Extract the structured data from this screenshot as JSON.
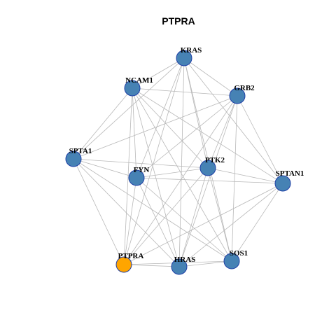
{
  "title": "PTPRA",
  "colors": {
    "node_fill": "#4682b4",
    "node_border": "#1f3fa6",
    "highlight_fill": "#ffa500",
    "edge": "#b8b8b8"
  },
  "nodes": [
    {
      "id": "KRAS",
      "label": "KRAS",
      "highlight": false
    },
    {
      "id": "NCAM1",
      "label": "NCAM1",
      "highlight": false
    },
    {
      "id": "GRB2",
      "label": "GRB2",
      "highlight": false
    },
    {
      "id": "SPTA1",
      "label": "SPTA1",
      "highlight": false
    },
    {
      "id": "PTK2",
      "label": "PTK2",
      "highlight": false
    },
    {
      "id": "FYN",
      "label": "FYN",
      "highlight": false
    },
    {
      "id": "SPTAN1",
      "label": "SPTAN1",
      "highlight": false
    },
    {
      "id": "SOS1",
      "label": "SOS1",
      "highlight": false
    },
    {
      "id": "PTPRA",
      "label": "PTPRA",
      "highlight": true
    },
    {
      "id": "HRAS",
      "label": "HRAS",
      "highlight": false
    }
  ],
  "edges": [
    [
      "KRAS",
      "NCAM1"
    ],
    [
      "KRAS",
      "GRB2"
    ],
    [
      "KRAS",
      "SPTA1"
    ],
    [
      "KRAS",
      "PTK2"
    ],
    [
      "KRAS",
      "FYN"
    ],
    [
      "KRAS",
      "SPTAN1"
    ],
    [
      "KRAS",
      "SOS1"
    ],
    [
      "KRAS",
      "PTPRA"
    ],
    [
      "KRAS",
      "HRAS"
    ],
    [
      "NCAM1",
      "GRB2"
    ],
    [
      "NCAM1",
      "SPTA1"
    ],
    [
      "NCAM1",
      "PTK2"
    ],
    [
      "NCAM1",
      "FYN"
    ],
    [
      "NCAM1",
      "SPTAN1"
    ],
    [
      "NCAM1",
      "SOS1"
    ],
    [
      "NCAM1",
      "PTPRA"
    ],
    [
      "NCAM1",
      "HRAS"
    ],
    [
      "GRB2",
      "SPTA1"
    ],
    [
      "GRB2",
      "PTK2"
    ],
    [
      "GRB2",
      "FYN"
    ],
    [
      "GRB2",
      "SPTAN1"
    ],
    [
      "GRB2",
      "SOS1"
    ],
    [
      "GRB2",
      "PTPRA"
    ],
    [
      "GRB2",
      "HRAS"
    ],
    [
      "SPTA1",
      "PTK2"
    ],
    [
      "SPTA1",
      "FYN"
    ],
    [
      "SPTA1",
      "SOS1"
    ],
    [
      "SPTA1",
      "PTPRA"
    ],
    [
      "SPTA1",
      "HRAS"
    ],
    [
      "PTK2",
      "FYN"
    ],
    [
      "PTK2",
      "SPTAN1"
    ],
    [
      "PTK2",
      "SOS1"
    ],
    [
      "PTK2",
      "PTPRA"
    ],
    [
      "PTK2",
      "HRAS"
    ],
    [
      "FYN",
      "SPTAN1"
    ],
    [
      "FYN",
      "SOS1"
    ],
    [
      "FYN",
      "PTPRA"
    ],
    [
      "FYN",
      "HRAS"
    ],
    [
      "SPTAN1",
      "SOS1"
    ],
    [
      "SPTAN1",
      "PTPRA"
    ],
    [
      "SPTAN1",
      "HRAS"
    ],
    [
      "SOS1",
      "PTPRA"
    ],
    [
      "SOS1",
      "HRAS"
    ],
    [
      "PTPRA",
      "HRAS"
    ]
  ]
}
